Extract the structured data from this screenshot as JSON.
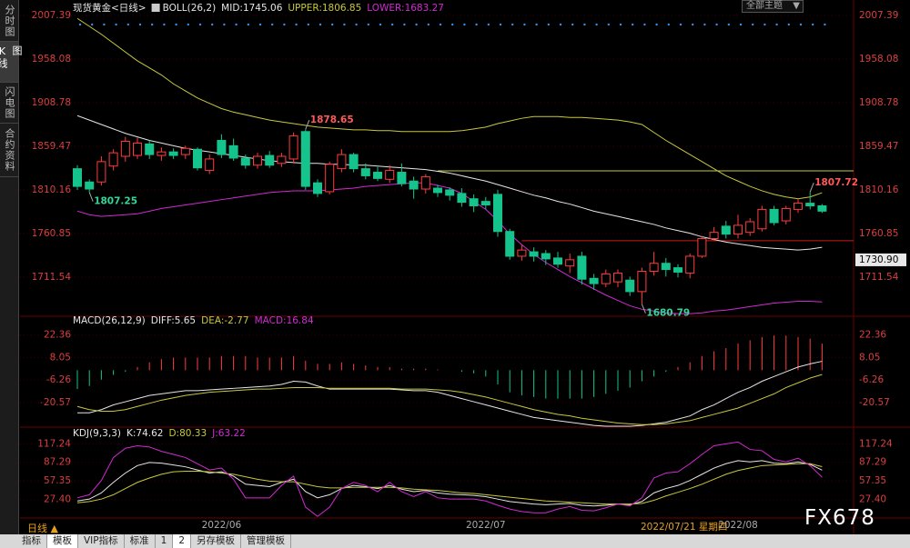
{
  "ui": {
    "sidebar": [
      "分时图",
      "K线图",
      "闪电图",
      "合约资料"
    ],
    "theme_select": "全部主题",
    "period": "日线 ▲",
    "bottom_tabs": [
      "指标",
      "模板",
      "VIP指标",
      "标准",
      "1",
      "2",
      "另存模板",
      "管理模板"
    ],
    "cursor_date": "2022/07/21 星期四",
    "watermark": "FX678"
  },
  "chart_data": [
    {
      "type": "candlestick",
      "title": "现货黄金<日线>",
      "indicator": "BOLL(26,2)",
      "categories": [
        null,
        null,
        null,
        null,
        null,
        null,
        null,
        null,
        null,
        null,
        null,
        null,
        "2022/06",
        null,
        null,
        null,
        null,
        null,
        null,
        null,
        null,
        null,
        null,
        null,
        null,
        null,
        null,
        null,
        null,
        null,
        null,
        null,
        null,
        null,
        "2022/07",
        null,
        null,
        null,
        null,
        null,
        null,
        null,
        null,
        null,
        null,
        null,
        null,
        null,
        null,
        null,
        null,
        null,
        null,
        null,
        null,
        "2022/08",
        null,
        null,
        null,
        null,
        null,
        null,
        null
      ],
      "open": [
        1834,
        1819,
        1819,
        1837,
        1848,
        1849,
        1862,
        1849,
        1853,
        1850,
        1856,
        1832,
        1866,
        1860,
        1846,
        1838,
        1849,
        1840,
        1845,
        1876,
        1818,
        1808,
        1834,
        1850,
        1834,
        1830,
        1822,
        1830,
        1820,
        1811,
        1812,
        1810,
        1806,
        1800,
        1797,
        1805,
        1763,
        1735,
        1740,
        1738,
        1733,
        1724,
        1735,
        1710,
        1704,
        1706,
        1708,
        1695,
        1718,
        1727,
        1722,
        1716,
        1735,
        1755,
        1769,
        1760,
        1762,
        1766,
        1788,
        1775,
        1788,
        1795,
        1792
      ],
      "high": [
        1838,
        1822,
        1848,
        1856,
        1870,
        1869,
        1866,
        1858,
        1857,
        1860,
        1858,
        1850,
        1873,
        1868,
        1850,
        1852,
        1854,
        1852,
        1875,
        1878.65,
        1822,
        1842,
        1856,
        1852,
        1840,
        1836,
        1838,
        1840,
        1825,
        1828,
        1816,
        1813,
        1812,
        1805,
        1802,
        1810,
        1766,
        1748,
        1745,
        1742,
        1740,
        1738,
        1740,
        1715,
        1720,
        1720,
        1712,
        1722,
        1740,
        1733,
        1726,
        1738,
        1758,
        1768,
        1775,
        1782,
        1778,
        1792,
        1792,
        1792,
        1800,
        1807.72,
        1794
      ],
      "low": [
        1810,
        1807.25,
        1815,
        1832,
        1842,
        1845,
        1845,
        1843,
        1845,
        1845,
        1832,
        1828,
        1846,
        1843,
        1834,
        1834,
        1835,
        1836,
        1840,
        1810,
        1802,
        1805,
        1830,
        1830,
        1822,
        1820,
        1818,
        1814,
        1800,
        1806,
        1802,
        1798,
        1791,
        1785,
        1788,
        1757,
        1731,
        1730,
        1729,
        1725,
        1722,
        1716,
        1703,
        1697,
        1700,
        1700,
        1690,
        1680.79,
        1713,
        1712,
        1711,
        1710,
        1733,
        1753,
        1755,
        1755,
        1758,
        1763,
        1770,
        1771,
        1784,
        1788,
        1784
      ],
      "close": [
        1814,
        1811,
        1842,
        1852,
        1865,
        1863,
        1850,
        1853,
        1849,
        1857,
        1835,
        1845,
        1850,
        1846,
        1838,
        1848,
        1838,
        1848,
        1871,
        1814,
        1806,
        1839,
        1850,
        1834,
        1826,
        1823,
        1832,
        1817,
        1811,
        1825,
        1807,
        1804,
        1796,
        1792,
        1793,
        1763,
        1735,
        1742,
        1735,
        1732,
        1726,
        1731,
        1709,
        1704,
        1715,
        1716,
        1695,
        1718,
        1727,
        1720,
        1717,
        1735,
        1755,
        1762,
        1760,
        1770,
        1774,
        1788,
        1773,
        1789,
        1795,
        1792,
        1786
      ],
      "up_color": "#ff3c3c",
      "down_color": "#14c48c",
      "series": [
        {
          "name": "MID:1745.06",
          "color": "#e6e6e6",
          "values": [
            1894,
            1889,
            1884,
            1879,
            1874,
            1870,
            1866,
            1863,
            1860,
            1857,
            1855,
            1853,
            1851,
            1849,
            1847,
            1845,
            1843,
            1842,
            1841,
            1840,
            1840,
            1839,
            1839,
            1838,
            1838,
            1837,
            1836,
            1835,
            1834,
            1833,
            1831,
            1829,
            1826,
            1823,
            1820,
            1816,
            1812,
            1808,
            1804,
            1801,
            1797,
            1794,
            1790,
            1786,
            1783,
            1780,
            1777,
            1774,
            1771,
            1767,
            1764,
            1761,
            1757,
            1754,
            1751,
            1749,
            1747,
            1745,
            1744,
            1743,
            1742,
            1743,
            1745.06
          ]
        },
        {
          "name": "UPPER:1806.85",
          "color": "#c8c83c",
          "values": [
            2004,
            1995,
            1986,
            1976,
            1966,
            1956,
            1948,
            1940,
            1930,
            1922,
            1914,
            1908,
            1902,
            1898,
            1895,
            1892,
            1889,
            1887,
            1885,
            1883,
            1881,
            1880,
            1879,
            1878,
            1878,
            1877,
            1877,
            1876,
            1876,
            1876,
            1876,
            1876,
            1877,
            1879,
            1881,
            1885,
            1888,
            1891,
            1893,
            1893,
            1893,
            1892,
            1892,
            1891,
            1890,
            1889,
            1887,
            1884,
            1875,
            1866,
            1858,
            1850,
            1842,
            1834,
            1826,
            1820,
            1814,
            1809,
            1805,
            1802,
            1800,
            1802,
            1806.85
          ]
        },
        {
          "name": "LOWER:1683.27",
          "color": "#d22ad2",
          "values": [
            1786,
            1782,
            1780,
            1781,
            1782,
            1783,
            1786,
            1789,
            1791,
            1793,
            1795,
            1797,
            1799,
            1801,
            1803,
            1805,
            1807,
            1808,
            1809,
            1809,
            1809,
            1810,
            1811,
            1812,
            1814,
            1815,
            1816,
            1817,
            1818,
            1818,
            1815,
            1812,
            1806,
            1797,
            1788,
            1775,
            1760,
            1748,
            1737,
            1728,
            1720,
            1712,
            1705,
            1698,
            1691,
            1685,
            1679,
            1675,
            1673,
            1671,
            1670,
            1670,
            1671,
            1673,
            1674,
            1676,
            1678,
            1680,
            1682,
            1683,
            1684,
            1684,
            1683.27
          ]
        }
      ],
      "hlines": [
        {
          "value": 1831.6,
          "color": "#c8c83c",
          "start": 30
        },
        {
          "value": 1752.5,
          "color": "#c81e1e",
          "start": 37
        }
      ],
      "annotations": [
        1878.65,
        1807.25,
        1680.79,
        1807.72
      ],
      "cursor": {
        "value": 1730.9,
        "label": "1730.90"
      },
      "ylim": [
        1667.1,
        2016.6
      ],
      "yticks": [
        2007.39,
        1958.08,
        1908.78,
        1859.47,
        1810.16,
        1760.85,
        1711.54
      ],
      "grid": true
    },
    {
      "type": "macd",
      "title": "MACD(26,12,9)",
      "series": [
        {
          "name": "DIFF:5.65",
          "color": "#e6e6e6",
          "values": [
            -27,
            -27,
            -25,
            -22,
            -20,
            -18,
            -16,
            -15,
            -14,
            -13,
            -13,
            -12.5,
            -12,
            -11.5,
            -11,
            -10.5,
            -10,
            -9,
            -7,
            -7.5,
            -10,
            -12,
            -12,
            -12,
            -12,
            -12,
            -12,
            -12.5,
            -13,
            -13,
            -14,
            -16,
            -18,
            -20,
            -22,
            -24,
            -26,
            -28,
            -30,
            -31,
            -32,
            -33,
            -34,
            -35,
            -35.5,
            -35.5,
            -35.5,
            -35,
            -34,
            -33,
            -31,
            -29,
            -25,
            -22,
            -18,
            -14,
            -11,
            -7,
            -4,
            -1,
            2,
            4,
            5.65
          ]
        },
        {
          "name": "DEA:-2.77",
          "color": "#c8c83c",
          "values": [
            -23,
            -25,
            -26,
            -26,
            -25,
            -23,
            -21,
            -19,
            -17.5,
            -16,
            -15,
            -14,
            -13.5,
            -13,
            -12.5,
            -12,
            -12,
            -11.5,
            -11,
            -11,
            -11,
            -11.5,
            -11.5,
            -11.5,
            -11.5,
            -11.5,
            -11.5,
            -12,
            -12,
            -12,
            -12.5,
            -13,
            -14,
            -15.5,
            -17,
            -19,
            -21,
            -23,
            -25,
            -26.5,
            -28,
            -29,
            -30.5,
            -31.5,
            -32.5,
            -33.5,
            -34,
            -34.5,
            -34.5,
            -34,
            -33,
            -32,
            -30,
            -28,
            -26,
            -24,
            -21,
            -18,
            -15,
            -11,
            -8,
            -5,
            -2.77
          ]
        }
      ],
      "bars": {
        "name": "MACD:16.84",
        "color": "#d22ad2",
        "up_color": "#ff3c3c",
        "down_color": "#14c48c",
        "values": [
          -12,
          -10,
          -6,
          -3,
          -1,
          2,
          5,
          7,
          8,
          8,
          8,
          8,
          9,
          9,
          9,
          8,
          8,
          8,
          9,
          6,
          4,
          4,
          5,
          4,
          3,
          2,
          2,
          1,
          1,
          1,
          0.5,
          0,
          -1,
          -2,
          -4,
          -9,
          -14,
          -16,
          -17,
          -18,
          -18,
          -18,
          -18,
          -17,
          -15,
          -13,
          -11,
          -7,
          -4,
          -1,
          2,
          5,
          9,
          12,
          14,
          17,
          19,
          21,
          22,
          22,
          21,
          20,
          16.84
        ]
      },
      "ylim": [
        -36.1,
        31.9
      ],
      "yticks": [
        22.36,
        8.05,
        -6.26,
        -20.57
      ],
      "grid": true
    },
    {
      "type": "line",
      "title": "KDJ(9,3,3)",
      "series": [
        {
          "name": "K:74.62",
          "color": "#e6e6e6",
          "values": [
            25,
            28,
            38,
            55,
            70,
            82,
            87,
            86,
            83,
            80,
            75,
            70,
            72,
            65,
            52,
            50,
            48,
            55,
            60,
            40,
            30,
            35,
            45,
            50,
            48,
            45,
            50,
            44,
            40,
            42,
            38,
            36,
            35,
            34,
            32,
            28,
            24,
            22,
            20,
            19,
            20,
            21,
            18,
            17,
            18,
            20,
            19,
            24,
            38,
            45,
            50,
            58,
            68,
            78,
            85,
            90,
            88,
            90,
            86,
            85,
            88,
            84,
            74.62
          ]
        },
        {
          "name": "D:80.33",
          "color": "#c8c83c",
          "values": [
            22,
            24,
            28,
            35,
            45,
            55,
            62,
            68,
            72,
            73,
            73,
            72,
            70,
            68,
            64,
            60,
            57,
            56,
            56,
            52,
            48,
            46,
            46,
            47,
            47,
            47,
            47,
            46,
            44,
            43,
            42,
            40,
            38,
            37,
            35,
            33,
            31,
            29,
            27,
            25,
            24,
            23,
            22,
            21,
            20,
            20,
            20,
            21,
            26,
            33,
            39,
            45,
            52,
            60,
            68,
            74,
            78,
            82,
            83,
            84,
            85,
            85,
            80.33
          ]
        },
        {
          "name": "J:63.22",
          "color": "#d22ad2",
          "values": [
            30,
            35,
            58,
            95,
            110,
            114,
            112,
            105,
            100,
            95,
            85,
            75,
            78,
            60,
            30,
            30,
            30,
            50,
            65,
            15,
            0,
            15,
            45,
            55,
            50,
            40,
            55,
            40,
            32,
            40,
            30,
            28,
            28,
            28,
            25,
            18,
            12,
            8,
            6,
            6,
            12,
            16,
            10,
            9,
            14,
            20,
            17,
            30,
            62,
            70,
            72,
            85,
            100,
            114,
            117,
            120,
            108,
            106,
            92,
            88,
            94,
            82,
            63.22
          ]
        }
      ],
      "ylim": [
        -2.5,
        135.2
      ],
      "yticks": [
        117.24,
        87.29,
        57.35,
        {
          "value": 27.4,
          "label": "27.40"
        }
      ],
      "grid": true
    }
  ]
}
